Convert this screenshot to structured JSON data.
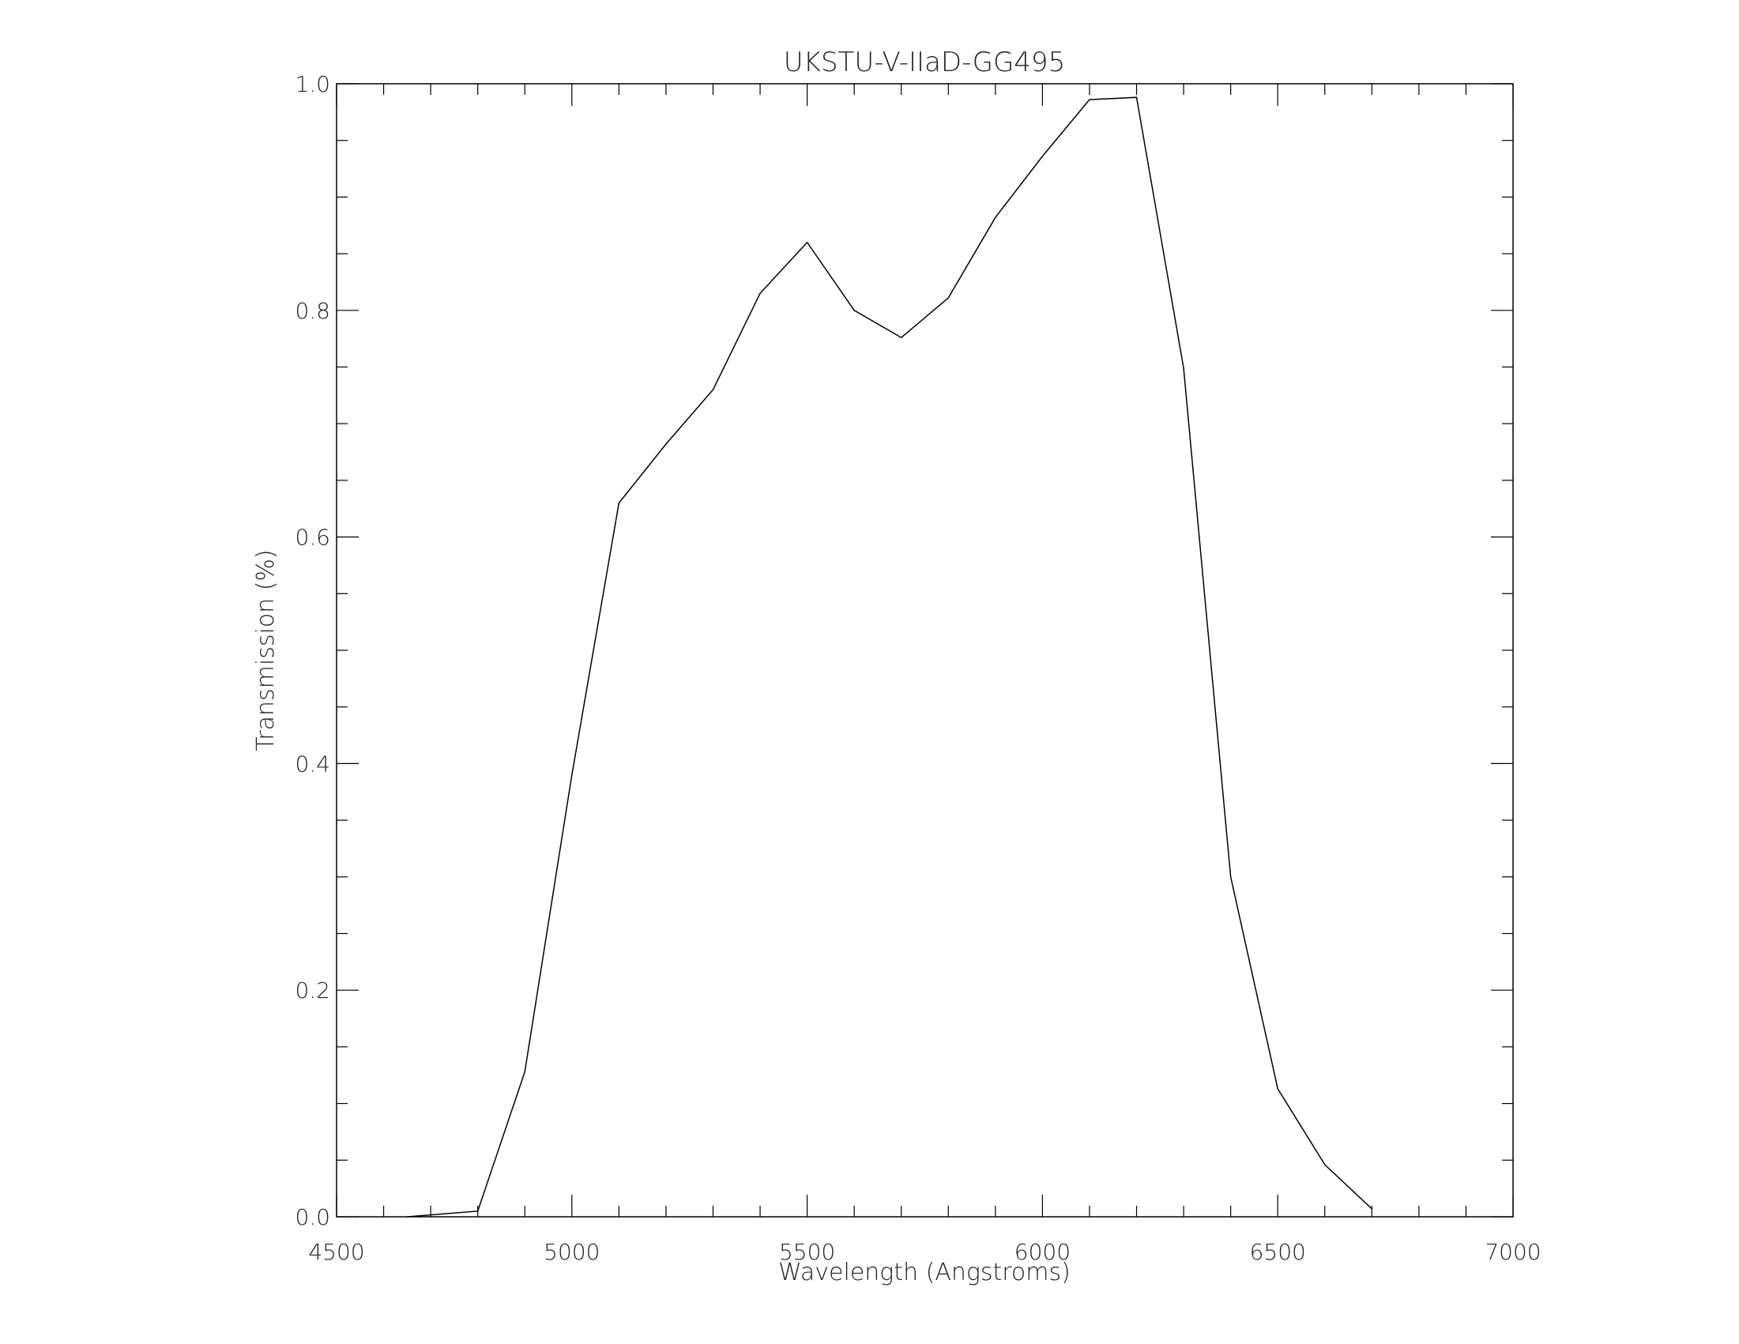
{
  "chart_data": {
    "type": "line",
    "title": "UKSTU-V-IIaD-GG495",
    "xlabel": "Wavelength (Angstroms)",
    "ylabel": "Transmission (%)",
    "xlim": [
      4500,
      7000
    ],
    "ylim": [
      0.0,
      1.0
    ],
    "xticks": [
      "4500",
      "5000",
      "5500",
      "6000",
      "6500",
      "7000"
    ],
    "yticks": [
      "0.0",
      "0.2",
      "0.4",
      "0.6",
      "0.8",
      "1.0"
    ],
    "x_minor_step": 100,
    "y_minor_step": 0.05,
    "grid": false,
    "line_color": "#000000",
    "series": [
      {
        "x": [
          4650,
          4800,
          4900,
          5000,
          5100,
          5200,
          5300,
          5400,
          5500,
          5600,
          5700,
          5800,
          5900,
          6000,
          6100,
          6200,
          6300,
          6400,
          6500,
          6600,
          6700
        ],
        "y": [
          0.0,
          0.005,
          0.128,
          0.39,
          0.63,
          0.682,
          0.73,
          0.815,
          0.86,
          0.8,
          0.776,
          0.811,
          0.882,
          0.936,
          0.986,
          0.988,
          0.749,
          0.3,
          0.113,
          0.046,
          0.007
        ]
      }
    ]
  }
}
